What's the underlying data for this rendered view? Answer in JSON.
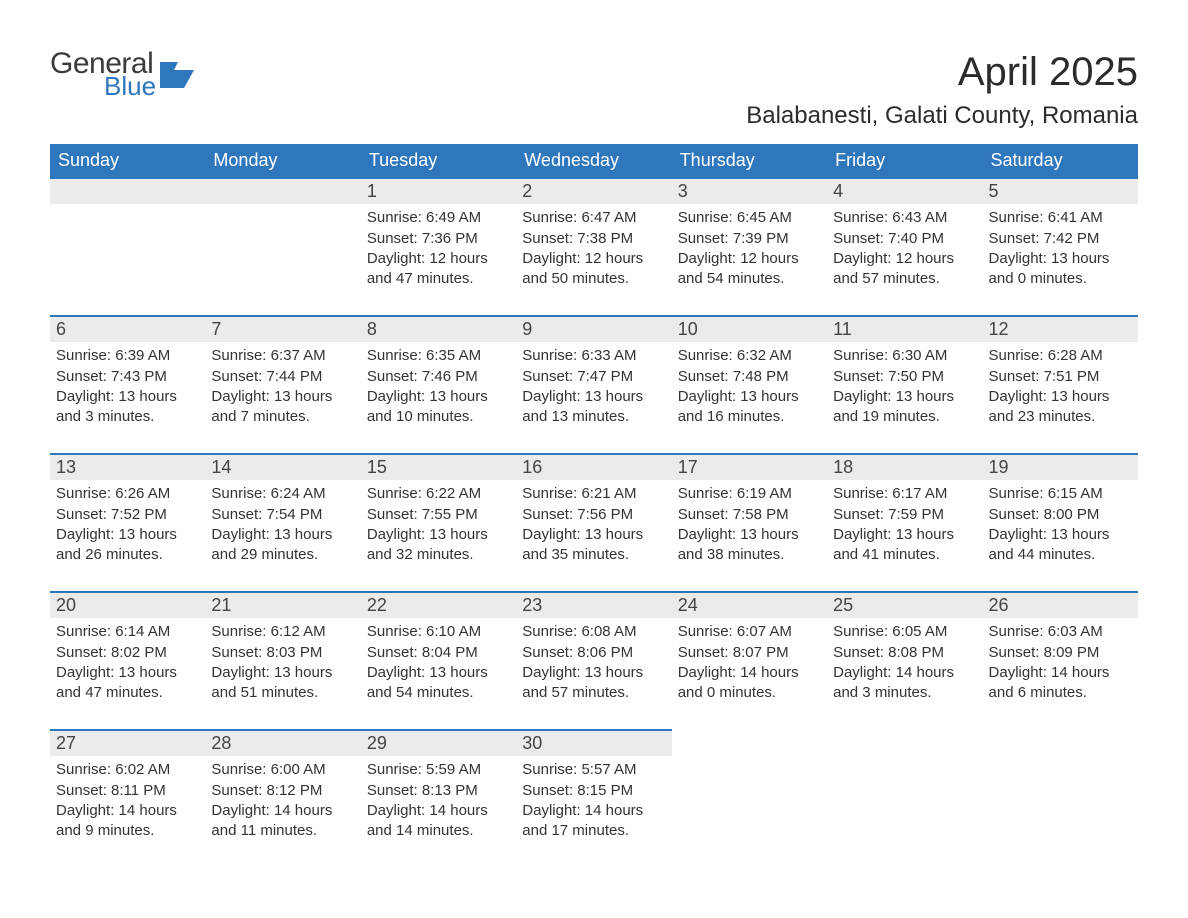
{
  "brand": {
    "word1": "General",
    "word2": "Blue"
  },
  "title": "April 2025",
  "location": "Balabanesti, Galati County, Romania",
  "colors": {
    "header_bg": "#2f77bc",
    "header_text": "#ffffff",
    "daynum_bg": "#ebebeb",
    "row_border": "#2f77bc",
    "body_text": "#333333",
    "logo_gray": "#3b3b3b",
    "logo_blue": "#2f77bc",
    "page_bg": "#ffffff"
  },
  "typography": {
    "title_fontsize": 40,
    "location_fontsize": 24,
    "dow_fontsize": 18,
    "daynum_fontsize": 18,
    "cell_fontsize": 15
  },
  "days_of_week": [
    "Sunday",
    "Monday",
    "Tuesday",
    "Wednesday",
    "Thursday",
    "Friday",
    "Saturday"
  ],
  "weeks": [
    [
      null,
      null,
      {
        "n": "1",
        "sr": "Sunrise: 6:49 AM",
        "ss": "Sunset: 7:36 PM",
        "d1": "Daylight: 12 hours",
        "d2": "and 47 minutes."
      },
      {
        "n": "2",
        "sr": "Sunrise: 6:47 AM",
        "ss": "Sunset: 7:38 PM",
        "d1": "Daylight: 12 hours",
        "d2": "and 50 minutes."
      },
      {
        "n": "3",
        "sr": "Sunrise: 6:45 AM",
        "ss": "Sunset: 7:39 PM",
        "d1": "Daylight: 12 hours",
        "d2": "and 54 minutes."
      },
      {
        "n": "4",
        "sr": "Sunrise: 6:43 AM",
        "ss": "Sunset: 7:40 PM",
        "d1": "Daylight: 12 hours",
        "d2": "and 57 minutes."
      },
      {
        "n": "5",
        "sr": "Sunrise: 6:41 AM",
        "ss": "Sunset: 7:42 PM",
        "d1": "Daylight: 13 hours",
        "d2": "and 0 minutes."
      }
    ],
    [
      {
        "n": "6",
        "sr": "Sunrise: 6:39 AM",
        "ss": "Sunset: 7:43 PM",
        "d1": "Daylight: 13 hours",
        "d2": "and 3 minutes."
      },
      {
        "n": "7",
        "sr": "Sunrise: 6:37 AM",
        "ss": "Sunset: 7:44 PM",
        "d1": "Daylight: 13 hours",
        "d2": "and 7 minutes."
      },
      {
        "n": "8",
        "sr": "Sunrise: 6:35 AM",
        "ss": "Sunset: 7:46 PM",
        "d1": "Daylight: 13 hours",
        "d2": "and 10 minutes."
      },
      {
        "n": "9",
        "sr": "Sunrise: 6:33 AM",
        "ss": "Sunset: 7:47 PM",
        "d1": "Daylight: 13 hours",
        "d2": "and 13 minutes."
      },
      {
        "n": "10",
        "sr": "Sunrise: 6:32 AM",
        "ss": "Sunset: 7:48 PM",
        "d1": "Daylight: 13 hours",
        "d2": "and 16 minutes."
      },
      {
        "n": "11",
        "sr": "Sunrise: 6:30 AM",
        "ss": "Sunset: 7:50 PM",
        "d1": "Daylight: 13 hours",
        "d2": "and 19 minutes."
      },
      {
        "n": "12",
        "sr": "Sunrise: 6:28 AM",
        "ss": "Sunset: 7:51 PM",
        "d1": "Daylight: 13 hours",
        "d2": "and 23 minutes."
      }
    ],
    [
      {
        "n": "13",
        "sr": "Sunrise: 6:26 AM",
        "ss": "Sunset: 7:52 PM",
        "d1": "Daylight: 13 hours",
        "d2": "and 26 minutes."
      },
      {
        "n": "14",
        "sr": "Sunrise: 6:24 AM",
        "ss": "Sunset: 7:54 PM",
        "d1": "Daylight: 13 hours",
        "d2": "and 29 minutes."
      },
      {
        "n": "15",
        "sr": "Sunrise: 6:22 AM",
        "ss": "Sunset: 7:55 PM",
        "d1": "Daylight: 13 hours",
        "d2": "and 32 minutes."
      },
      {
        "n": "16",
        "sr": "Sunrise: 6:21 AM",
        "ss": "Sunset: 7:56 PM",
        "d1": "Daylight: 13 hours",
        "d2": "and 35 minutes."
      },
      {
        "n": "17",
        "sr": "Sunrise: 6:19 AM",
        "ss": "Sunset: 7:58 PM",
        "d1": "Daylight: 13 hours",
        "d2": "and 38 minutes."
      },
      {
        "n": "18",
        "sr": "Sunrise: 6:17 AM",
        "ss": "Sunset: 7:59 PM",
        "d1": "Daylight: 13 hours",
        "d2": "and 41 minutes."
      },
      {
        "n": "19",
        "sr": "Sunrise: 6:15 AM",
        "ss": "Sunset: 8:00 PM",
        "d1": "Daylight: 13 hours",
        "d2": "and 44 minutes."
      }
    ],
    [
      {
        "n": "20",
        "sr": "Sunrise: 6:14 AM",
        "ss": "Sunset: 8:02 PM",
        "d1": "Daylight: 13 hours",
        "d2": "and 47 minutes."
      },
      {
        "n": "21",
        "sr": "Sunrise: 6:12 AM",
        "ss": "Sunset: 8:03 PM",
        "d1": "Daylight: 13 hours",
        "d2": "and 51 minutes."
      },
      {
        "n": "22",
        "sr": "Sunrise: 6:10 AM",
        "ss": "Sunset: 8:04 PM",
        "d1": "Daylight: 13 hours",
        "d2": "and 54 minutes."
      },
      {
        "n": "23",
        "sr": "Sunrise: 6:08 AM",
        "ss": "Sunset: 8:06 PM",
        "d1": "Daylight: 13 hours",
        "d2": "and 57 minutes."
      },
      {
        "n": "24",
        "sr": "Sunrise: 6:07 AM",
        "ss": "Sunset: 8:07 PM",
        "d1": "Daylight: 14 hours",
        "d2": "and 0 minutes."
      },
      {
        "n": "25",
        "sr": "Sunrise: 6:05 AM",
        "ss": "Sunset: 8:08 PM",
        "d1": "Daylight: 14 hours",
        "d2": "and 3 minutes."
      },
      {
        "n": "26",
        "sr": "Sunrise: 6:03 AM",
        "ss": "Sunset: 8:09 PM",
        "d1": "Daylight: 14 hours",
        "d2": "and 6 minutes."
      }
    ],
    [
      {
        "n": "27",
        "sr": "Sunrise: 6:02 AM",
        "ss": "Sunset: 8:11 PM",
        "d1": "Daylight: 14 hours",
        "d2": "and 9 minutes."
      },
      {
        "n": "28",
        "sr": "Sunrise: 6:00 AM",
        "ss": "Sunset: 8:12 PM",
        "d1": "Daylight: 14 hours",
        "d2": "and 11 minutes."
      },
      {
        "n": "29",
        "sr": "Sunrise: 5:59 AM",
        "ss": "Sunset: 8:13 PM",
        "d1": "Daylight: 14 hours",
        "d2": "and 14 minutes."
      },
      {
        "n": "30",
        "sr": "Sunrise: 5:57 AM",
        "ss": "Sunset: 8:15 PM",
        "d1": "Daylight: 14 hours",
        "d2": "and 17 minutes."
      },
      null,
      null,
      null
    ]
  ]
}
